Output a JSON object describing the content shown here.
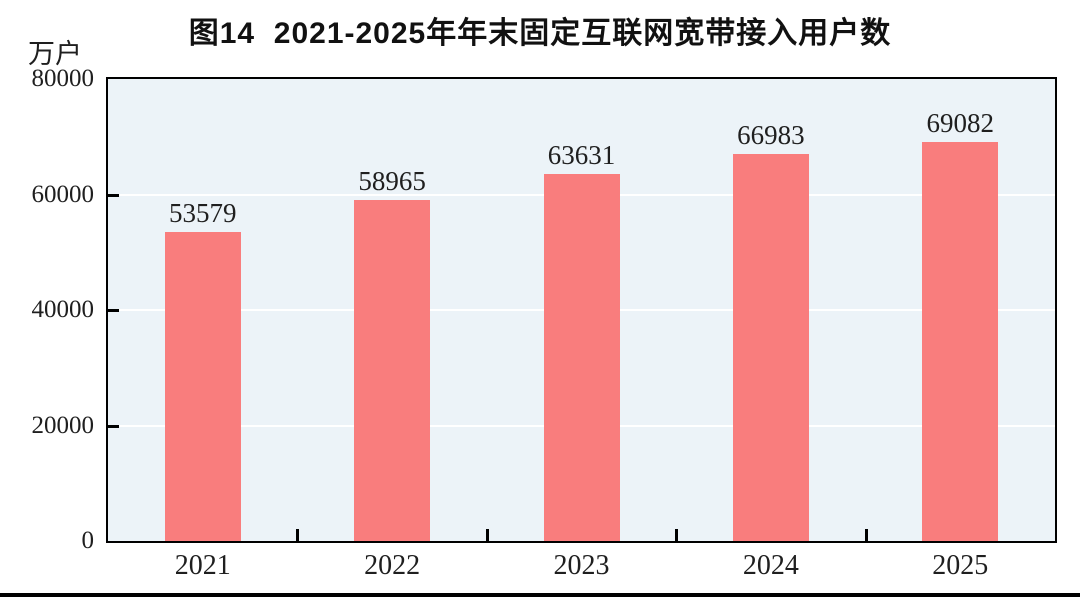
{
  "chart_data": {
    "type": "bar",
    "title": "图14  2021-2025年年末固定互联网宽带接入用户数",
    "unit_label": "万户",
    "categories": [
      "2021",
      "2022",
      "2023",
      "2024",
      "2025"
    ],
    "values": [
      53579,
      58965,
      63631,
      66983,
      69082
    ],
    "value_labels": [
      "53579",
      "58965",
      "63631",
      "66983",
      "69082"
    ],
    "xlabel": "",
    "ylabel": "万户",
    "ylim": [
      0,
      80000
    ],
    "yticks": [
      0,
      20000,
      40000,
      60000,
      80000
    ],
    "ytick_labels": [
      "0",
      "20000",
      "40000",
      "60000",
      "80000"
    ],
    "grid": true,
    "legend": null,
    "colors": {
      "bar": "#F97D7D",
      "plot_background": "#ECF3F8",
      "gridline": "#FFFFFF",
      "axis": "#000000",
      "text": "#1F1F1F"
    }
  }
}
